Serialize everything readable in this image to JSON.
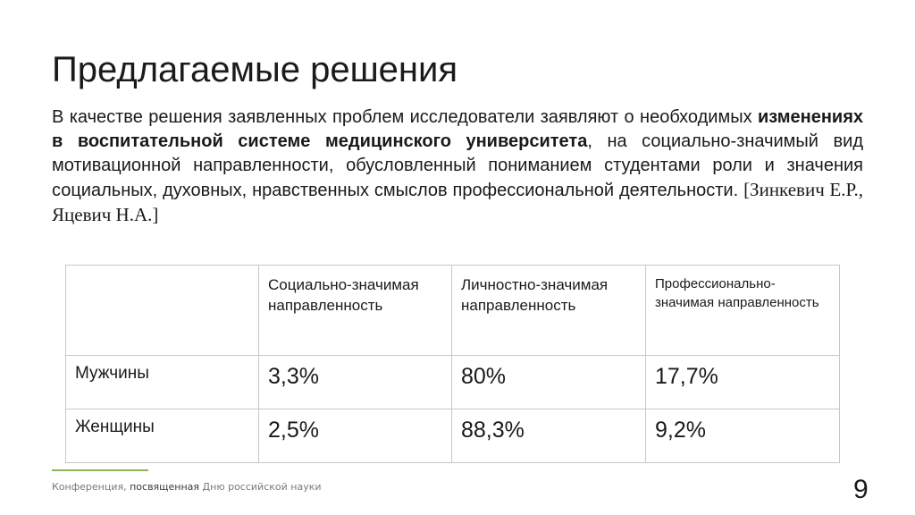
{
  "slide": {
    "title": "Предлагаемые решения",
    "paragraph": {
      "part1": "В качестве решения заявленных проблем исследователи заявляют о необходимых ",
      "bold1": "изменениях в воспитательной системе медицинского университета",
      "part2": ", на социально-значимый вид мотивационной направленности, обусловленный пониманием студентами роли и значения социальных, духовных, нравственных смыслов профессиональной деятельности. ",
      "citation": "[Зинкевич Е.Р., Яцевич Н.А.]"
    },
    "table": {
      "headers": [
        "",
        "Социально-значимая направленность",
        "Личностно-значимая направленность",
        "Профессионально-значимая направленность"
      ],
      "rows": [
        {
          "label": "Мужчины",
          "values": [
            "3,3%",
            "80%",
            "17,7%"
          ]
        },
        {
          "label": "Женщины",
          "values": [
            "2,5%",
            "88,3%",
            "9,2%"
          ]
        }
      ]
    },
    "footer": {
      "part1": "Конференция, ",
      "part2": "посвященная",
      "part3": " Дню российской науки"
    },
    "page_number": "9"
  }
}
